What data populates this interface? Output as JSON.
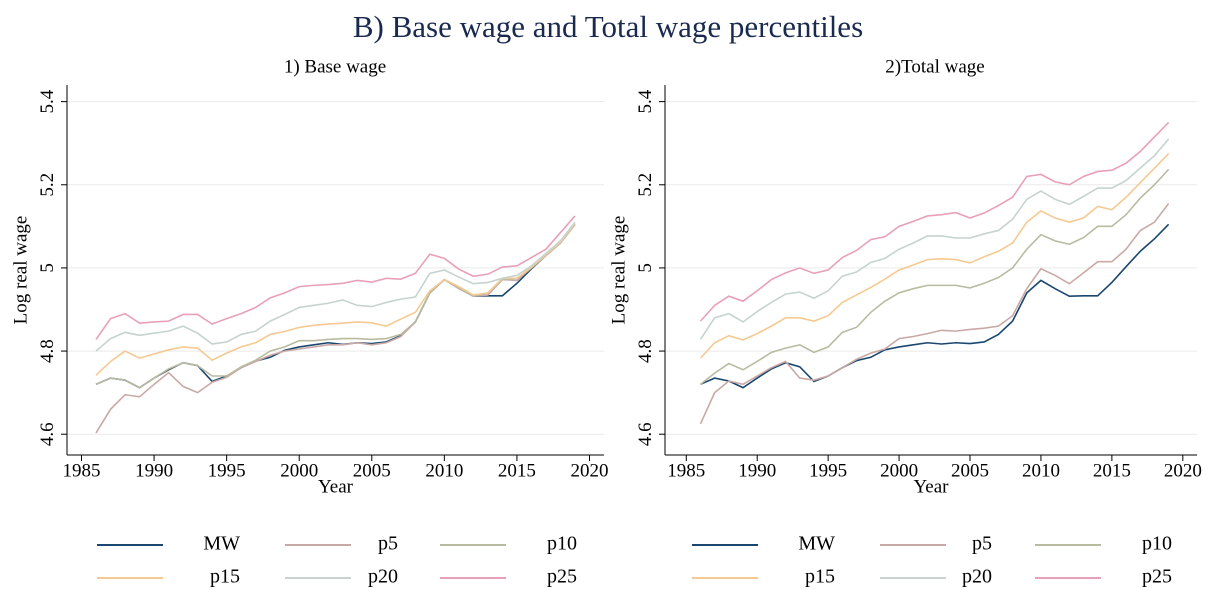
{
  "title": "B) Base wage and Total wage percentiles",
  "chart_data": [
    {
      "type": "line",
      "title": "1) Base wage",
      "x_label": "Year",
      "y_label": "Log real wage",
      "x": [
        1986,
        1987,
        1988,
        1989,
        1990,
        1991,
        1992,
        1993,
        1994,
        1995,
        1996,
        1997,
        1998,
        1999,
        2000,
        2001,
        2002,
        2003,
        2004,
        2005,
        2006,
        2007,
        2008,
        2009,
        2010,
        2011,
        2012,
        2013,
        2014,
        2015,
        2016,
        2017,
        2018,
        2019
      ],
      "xlim": [
        1984,
        2021
      ],
      "xticks": [
        1985,
        1990,
        1995,
        2000,
        2005,
        2010,
        2015,
        2020
      ],
      "ylim": [
        4.55,
        5.44
      ],
      "yticks": [
        4.6,
        4.8,
        5,
        5.2,
        5.4
      ],
      "grid": true,
      "legend": "bottom",
      "series": [
        {
          "name": "MW",
          "color": "#1a476f",
          "values": [
            4.72,
            4.735,
            4.73,
            4.712,
            4.735,
            4.755,
            4.772,
            4.765,
            4.727,
            4.74,
            4.76,
            4.776,
            4.785,
            4.802,
            4.81,
            4.815,
            4.82,
            4.816,
            4.82,
            4.818,
            4.822,
            4.837,
            4.87,
            4.94,
            4.972,
            4.952,
            4.932,
            4.933,
            4.933,
            4.963,
            4.998,
            5.03,
            5.06,
            5.105
          ]
        },
        {
          "name": "p5",
          "color": "#c9a9a6",
          "values": [
            4.603,
            4.66,
            4.695,
            4.69,
            4.72,
            4.748,
            4.715,
            4.7,
            4.725,
            4.737,
            4.76,
            4.775,
            4.79,
            4.8,
            4.805,
            4.81,
            4.815,
            4.815,
            4.82,
            4.815,
            4.82,
            4.835,
            4.87,
            4.94,
            4.972,
            4.95,
            4.932,
            4.935,
            4.972,
            4.97,
            5.0,
            5.03,
            5.06,
            5.105
          ]
        },
        {
          "name": "p10",
          "color": "#b9bba0",
          "values": [
            4.72,
            4.735,
            4.73,
            4.712,
            4.735,
            4.757,
            4.772,
            4.765,
            4.74,
            4.74,
            4.762,
            4.778,
            4.8,
            4.81,
            4.825,
            4.825,
            4.828,
            4.83,
            4.83,
            4.828,
            4.83,
            4.84,
            4.87,
            4.94,
            4.972,
            4.952,
            4.932,
            4.94,
            4.972,
            4.975,
            5.0,
            5.03,
            5.06,
            5.105
          ]
        },
        {
          "name": "p15",
          "color": "#f5c992",
          "values": [
            4.742,
            4.775,
            4.8,
            4.783,
            4.793,
            4.803,
            4.81,
            4.807,
            4.778,
            4.795,
            4.81,
            4.82,
            4.84,
            4.847,
            4.857,
            4.862,
            4.865,
            4.867,
            4.87,
            4.868,
            4.86,
            4.877,
            4.893,
            4.945,
            4.972,
            4.955,
            4.935,
            4.94,
            4.975,
            4.975,
            5.002,
            5.032,
            5.062,
            5.107
          ]
        },
        {
          "name": "p20",
          "color": "#c6d3d0",
          "values": [
            4.8,
            4.83,
            4.845,
            4.838,
            4.843,
            4.848,
            4.86,
            4.843,
            4.817,
            4.822,
            4.84,
            4.848,
            4.872,
            4.888,
            4.905,
            4.91,
            4.915,
            4.923,
            4.91,
            4.907,
            4.917,
            4.925,
            4.93,
            4.987,
            4.995,
            4.978,
            4.962,
            4.965,
            4.975,
            4.982,
            5.005,
            5.035,
            5.065,
            5.11
          ]
        },
        {
          "name": "p25",
          "color": "#e8a0b8",
          "values": [
            4.828,
            4.878,
            4.89,
            4.867,
            4.87,
            4.872,
            4.888,
            4.888,
            4.865,
            4.878,
            4.89,
            4.905,
            4.928,
            4.94,
            4.955,
            4.958,
            4.96,
            4.963,
            4.97,
            4.966,
            4.975,
            4.973,
            4.987,
            5.033,
            5.023,
            4.997,
            4.98,
            4.985,
            5.002,
            5.005,
            5.025,
            5.045,
            5.085,
            5.125
          ]
        }
      ]
    },
    {
      "type": "line",
      "title": "2)Total wage",
      "x_label": "Year",
      "y_label": "Log real wage",
      "x": [
        1986,
        1987,
        1988,
        1989,
        1990,
        1991,
        1992,
        1993,
        1994,
        1995,
        1996,
        1997,
        1998,
        1999,
        2000,
        2001,
        2002,
        2003,
        2004,
        2005,
        2006,
        2007,
        2008,
        2009,
        2010,
        2011,
        2012,
        2013,
        2014,
        2015,
        2016,
        2017,
        2018,
        2019
      ],
      "xlim": [
        1983.5,
        2021
      ],
      "xticks": [
        1985,
        1990,
        1995,
        2000,
        2005,
        2010,
        2015,
        2020
      ],
      "ylim": [
        4.55,
        5.44
      ],
      "yticks": [
        4.6,
        4.8,
        5,
        5.2,
        5.4
      ],
      "grid": true,
      "legend": "bottom",
      "series": [
        {
          "name": "MW",
          "color": "#1a476f",
          "values": [
            4.72,
            4.735,
            4.728,
            4.712,
            4.735,
            4.757,
            4.772,
            4.762,
            4.727,
            4.74,
            4.76,
            4.777,
            4.785,
            4.803,
            4.81,
            4.815,
            4.82,
            4.817,
            4.82,
            4.818,
            4.822,
            4.84,
            4.872,
            4.94,
            4.97,
            4.95,
            4.932,
            4.933,
            4.933,
            4.965,
            5.003,
            5.04,
            5.07,
            5.105
          ]
        },
        {
          "name": "p5",
          "color": "#c9a9a6",
          "values": [
            4.625,
            4.7,
            4.728,
            4.72,
            4.74,
            4.76,
            4.775,
            4.735,
            4.73,
            4.74,
            4.76,
            4.78,
            4.795,
            4.805,
            4.83,
            4.835,
            4.842,
            4.85,
            4.848,
            4.852,
            4.855,
            4.86,
            4.885,
            4.95,
            4.998,
            4.982,
            4.962,
            4.988,
            5.015,
            5.015,
            5.045,
            5.09,
            5.11,
            5.155
          ]
        },
        {
          "name": "p10",
          "color": "#b9bba0",
          "values": [
            4.72,
            4.747,
            4.77,
            4.755,
            4.775,
            4.797,
            4.807,
            4.815,
            4.797,
            4.81,
            4.845,
            4.857,
            4.893,
            4.92,
            4.94,
            4.95,
            4.958,
            4.958,
            4.958,
            4.952,
            4.963,
            4.977,
            5.0,
            5.045,
            5.08,
            5.065,
            5.057,
            5.073,
            5.1,
            5.1,
            5.128,
            5.168,
            5.2,
            5.237
          ]
        },
        {
          "name": "p15",
          "color": "#f5c992",
          "values": [
            4.783,
            4.82,
            4.837,
            4.827,
            4.842,
            4.86,
            4.88,
            4.88,
            4.872,
            4.885,
            4.917,
            4.935,
            4.953,
            4.973,
            4.995,
            5.007,
            5.02,
            5.022,
            5.02,
            5.012,
            5.027,
            5.04,
            5.06,
            5.11,
            5.137,
            5.12,
            5.11,
            5.12,
            5.148,
            5.14,
            5.17,
            5.205,
            5.24,
            5.275
          ]
        },
        {
          "name": "p20",
          "color": "#c6d3d0",
          "values": [
            4.828,
            4.88,
            4.89,
            4.87,
            4.895,
            4.917,
            4.937,
            4.942,
            4.927,
            4.945,
            4.98,
            4.99,
            5.013,
            5.023,
            5.045,
            5.06,
            5.077,
            5.077,
            5.072,
            5.072,
            5.082,
            5.09,
            5.117,
            5.165,
            5.185,
            5.165,
            5.153,
            5.172,
            5.192,
            5.192,
            5.21,
            5.24,
            5.27,
            5.31
          ]
        },
        {
          "name": "p25",
          "color": "#e8a0b8",
          "values": [
            4.872,
            4.91,
            4.932,
            4.92,
            4.945,
            4.972,
            4.988,
            5.0,
            4.987,
            4.995,
            5.025,
            5.042,
            5.068,
            5.075,
            5.1,
            5.112,
            5.125,
            5.128,
            5.133,
            5.12,
            5.132,
            5.15,
            5.17,
            5.22,
            5.225,
            5.207,
            5.2,
            5.22,
            5.232,
            5.235,
            5.252,
            5.28,
            5.315,
            5.35
          ]
        }
      ]
    }
  ]
}
